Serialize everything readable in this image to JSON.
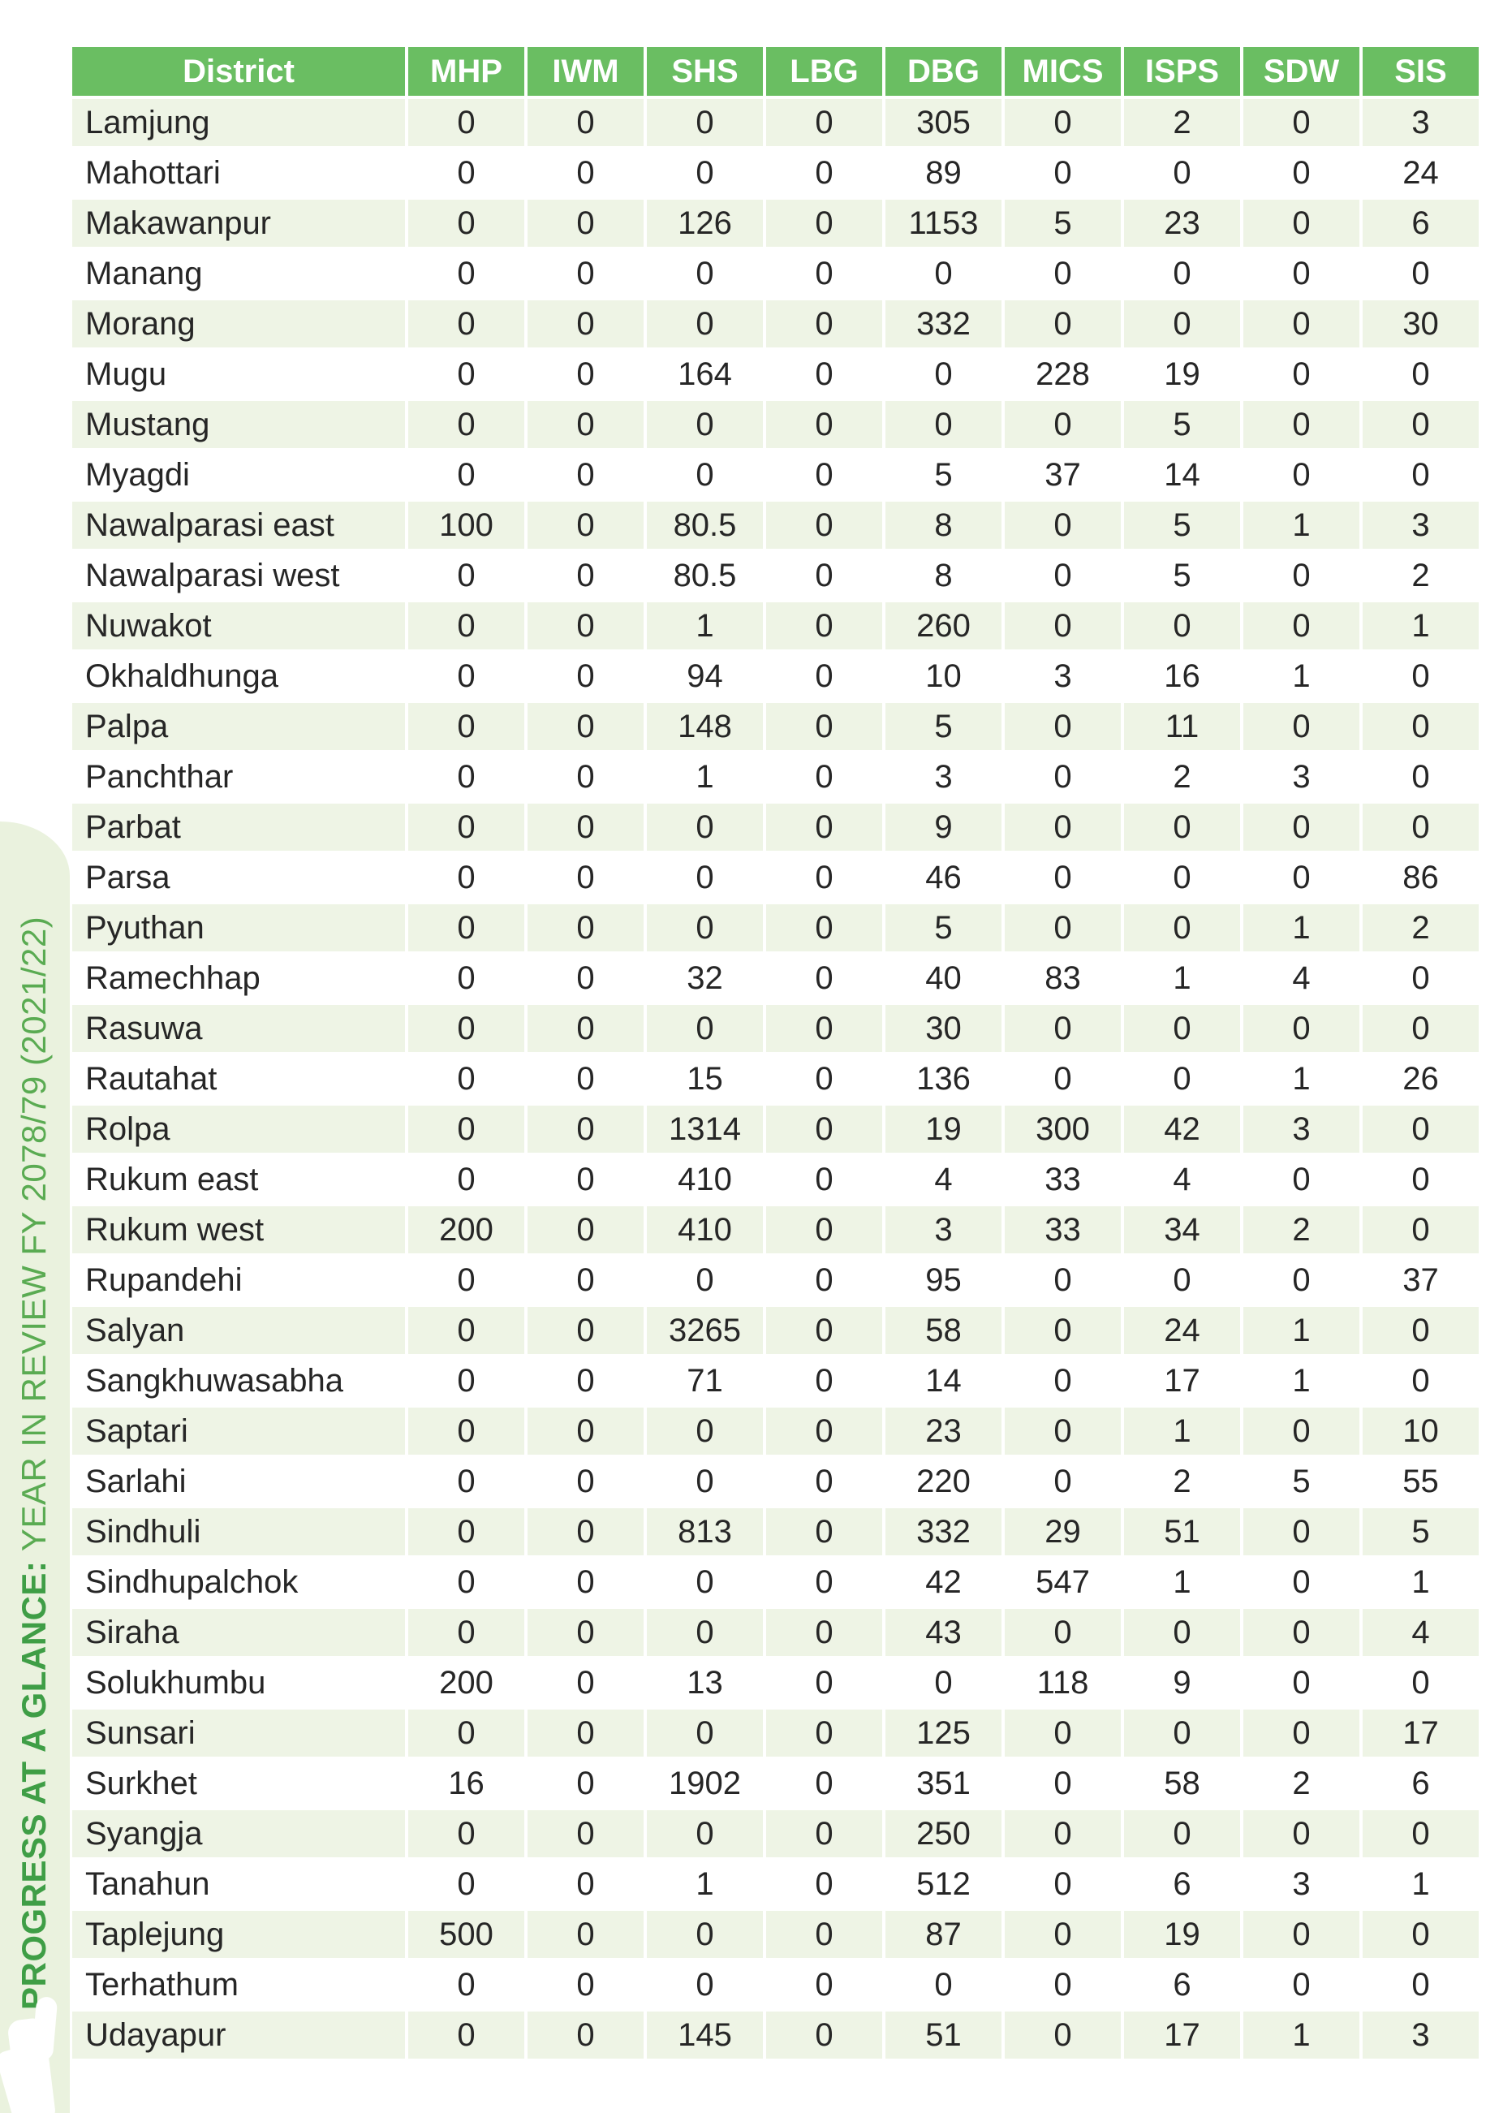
{
  "sidebar": {
    "title_bold": "PROGRESS AT A GLANCE:",
    "title_regular": " YEAR IN REVIEW FY 2078/79 (2021/22)"
  },
  "colors": {
    "header_green": "#6abe62",
    "row_tint_green": "#eef4e5",
    "sidebar_band_green": "#eaf2de",
    "sidebar_text_bold_green": "#3f9e46",
    "sidebar_text_regular_green": "#5aab52"
  },
  "table": {
    "columns": [
      "District",
      "MHP",
      "IWM",
      "SHS",
      "LBG",
      "DBG",
      "MICS",
      "ISPS",
      "SDW",
      "SIS"
    ],
    "rows": [
      {
        "district": "Lamjung",
        "values": [
          "0",
          "0",
          "0",
          "0",
          "305",
          "0",
          "2",
          "0",
          "3"
        ]
      },
      {
        "district": "Mahottari",
        "values": [
          "0",
          "0",
          "0",
          "0",
          "89",
          "0",
          "0",
          "0",
          "24"
        ]
      },
      {
        "district": "Makawanpur",
        "values": [
          "0",
          "0",
          "126",
          "0",
          "1153",
          "5",
          "23",
          "0",
          "6"
        ]
      },
      {
        "district": "Manang",
        "values": [
          "0",
          "0",
          "0",
          "0",
          "0",
          "0",
          "0",
          "0",
          "0"
        ]
      },
      {
        "district": "Morang",
        "values": [
          "0",
          "0",
          "0",
          "0",
          "332",
          "0",
          "0",
          "0",
          "30"
        ]
      },
      {
        "district": "Mugu",
        "values": [
          "0",
          "0",
          "164",
          "0",
          "0",
          "228",
          "19",
          "0",
          "0"
        ]
      },
      {
        "district": "Mustang",
        "values": [
          "0",
          "0",
          "0",
          "0",
          "0",
          "0",
          "5",
          "0",
          "0"
        ]
      },
      {
        "district": "Myagdi",
        "values": [
          "0",
          "0",
          "0",
          "0",
          "5",
          "37",
          "14",
          "0",
          "0"
        ]
      },
      {
        "district": "Nawalparasi east",
        "values": [
          "100",
          "0",
          "80.5",
          "0",
          "8",
          "0",
          "5",
          "1",
          "3"
        ]
      },
      {
        "district": "Nawalparasi west",
        "values": [
          "0",
          "0",
          "80.5",
          "0",
          "8",
          "0",
          "5",
          "0",
          "2"
        ]
      },
      {
        "district": "Nuwakot",
        "values": [
          "0",
          "0",
          "1",
          "0",
          "260",
          "0",
          "0",
          "0",
          "1"
        ]
      },
      {
        "district": "Okhaldhunga",
        "values": [
          "0",
          "0",
          "94",
          "0",
          "10",
          "3",
          "16",
          "1",
          "0"
        ]
      },
      {
        "district": "Palpa",
        "values": [
          "0",
          "0",
          "148",
          "0",
          "5",
          "0",
          "11",
          "0",
          "0"
        ]
      },
      {
        "district": "Panchthar",
        "values": [
          "0",
          "0",
          "1",
          "0",
          "3",
          "0",
          "2",
          "3",
          "0"
        ]
      },
      {
        "district": "Parbat",
        "values": [
          "0",
          "0",
          "0",
          "0",
          "9",
          "0",
          "0",
          "0",
          "0"
        ]
      },
      {
        "district": "Parsa",
        "values": [
          "0",
          "0",
          "0",
          "0",
          "46",
          "0",
          "0",
          "0",
          "86"
        ]
      },
      {
        "district": "Pyuthan",
        "values": [
          "0",
          "0",
          "0",
          "0",
          "5",
          "0",
          "0",
          "1",
          "2"
        ]
      },
      {
        "district": "Ramechhap",
        "values": [
          "0",
          "0",
          "32",
          "0",
          "40",
          "83",
          "1",
          "4",
          "0"
        ]
      },
      {
        "district": "Rasuwa",
        "values": [
          "0",
          "0",
          "0",
          "0",
          "30",
          "0",
          "0",
          "0",
          "0"
        ]
      },
      {
        "district": "Rautahat",
        "values": [
          "0",
          "0",
          "15",
          "0",
          "136",
          "0",
          "0",
          "1",
          "26"
        ]
      },
      {
        "district": "Rolpa",
        "values": [
          "0",
          "0",
          "1314",
          "0",
          "19",
          "300",
          "42",
          "3",
          "0"
        ]
      },
      {
        "district": "Rukum east",
        "values": [
          "0",
          "0",
          "410",
          "0",
          "4",
          "33",
          "4",
          "0",
          "0"
        ]
      },
      {
        "district": "Rukum west",
        "values": [
          "200",
          "0",
          "410",
          "0",
          "3",
          "33",
          "34",
          "2",
          "0"
        ]
      },
      {
        "district": "Rupandehi",
        "values": [
          "0",
          "0",
          "0",
          "0",
          "95",
          "0",
          "0",
          "0",
          "37"
        ]
      },
      {
        "district": "Salyan",
        "values": [
          "0",
          "0",
          "3265",
          "0",
          "58",
          "0",
          "24",
          "1",
          "0"
        ]
      },
      {
        "district": "Sangkhuwasabha",
        "values": [
          "0",
          "0",
          "71",
          "0",
          "14",
          "0",
          "17",
          "1",
          "0"
        ]
      },
      {
        "district": "Saptari",
        "values": [
          "0",
          "0",
          "0",
          "0",
          "23",
          "0",
          "1",
          "0",
          "10"
        ]
      },
      {
        "district": "Sarlahi",
        "values": [
          "0",
          "0",
          "0",
          "0",
          "220",
          "0",
          "2",
          "5",
          "55"
        ]
      },
      {
        "district": "Sindhuli",
        "values": [
          "0",
          "0",
          "813",
          "0",
          "332",
          "29",
          "51",
          "0",
          "5"
        ]
      },
      {
        "district": "Sindhupalchok",
        "values": [
          "0",
          "0",
          "0",
          "0",
          "42",
          "547",
          "1",
          "0",
          "1"
        ]
      },
      {
        "district": "Siraha",
        "values": [
          "0",
          "0",
          "0",
          "0",
          "43",
          "0",
          "0",
          "0",
          "4"
        ]
      },
      {
        "district": "Solukhumbu",
        "values": [
          "200",
          "0",
          "13",
          "0",
          "0",
          "118",
          "9",
          "0",
          "0"
        ]
      },
      {
        "district": "Sunsari",
        "values": [
          "0",
          "0",
          "0",
          "0",
          "125",
          "0",
          "0",
          "0",
          "17"
        ]
      },
      {
        "district": "Surkhet",
        "values": [
          "16",
          "0",
          "1902",
          "0",
          "351",
          "0",
          "58",
          "2",
          "6"
        ]
      },
      {
        "district": "Syangja",
        "values": [
          "0",
          "0",
          "0",
          "0",
          "250",
          "0",
          "0",
          "0",
          "0"
        ]
      },
      {
        "district": "Tanahun",
        "values": [
          "0",
          "0",
          "1",
          "0",
          "512",
          "0",
          "6",
          "3",
          "1"
        ]
      },
      {
        "district": "Taplejung",
        "values": [
          "500",
          "0",
          "0",
          "0",
          "87",
          "0",
          "19",
          "0",
          "0"
        ]
      },
      {
        "district": "Terhathum",
        "values": [
          "0",
          "0",
          "0",
          "0",
          "0",
          "0",
          "6",
          "0",
          "0"
        ]
      },
      {
        "district": "Udayapur",
        "values": [
          "0",
          "0",
          "145",
          "0",
          "51",
          "0",
          "17",
          "1",
          "3"
        ]
      }
    ]
  }
}
